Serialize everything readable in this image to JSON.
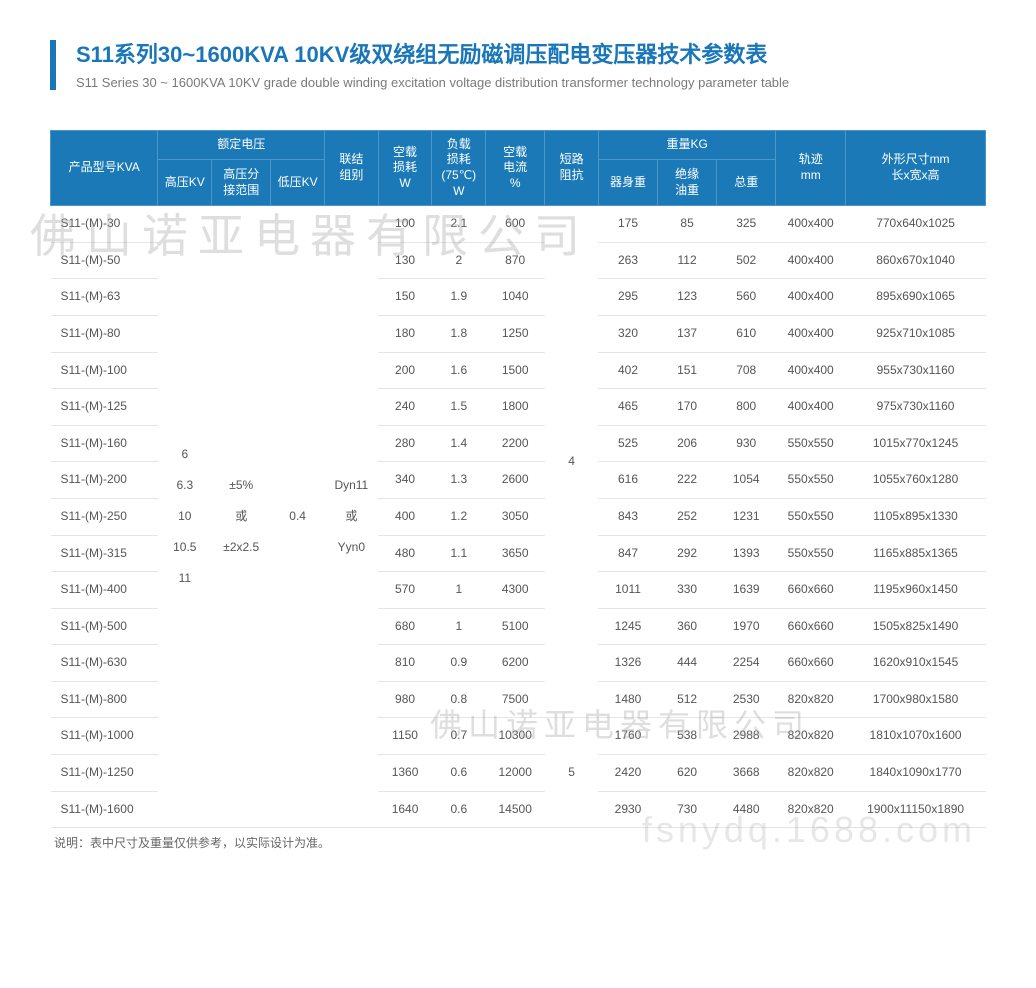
{
  "title_cn": "S11系列30~1600KVA 10KV级双绕组无励磁调压配电变压器技术参数表",
  "title_en": "S11 Series 30 ~ 1600KVA 10KV grade double winding excitation voltage distribution transformer technology parameter table",
  "colors": {
    "header_bg": "#1b79b8",
    "header_border": "#4a98c9",
    "accent": "#1976b8",
    "row_border": "#e5e5e5",
    "text": "#555555",
    "subtitle": "#7a7a7a"
  },
  "watermarks": {
    "w1": "佛山诺亚电器有限公司",
    "w2": "佛山诺亚电器有限公司",
    "w3": "fsnydq.1688.com"
  },
  "header": {
    "model": "产品型号KVA",
    "rated_voltage": "额定电压",
    "hv": "高压KV",
    "hv_range": "高压分\n接范围",
    "lv": "低压KV",
    "connection": "联结\n组别",
    "noload_loss": "空载\n损耗\nW",
    "load_loss": "负载\n损耗\n(75℃)\nW",
    "noload_current": "空载\n电流\n%",
    "impedance": "短路\n阻抗",
    "weight": "重量KG",
    "body_weight": "器身重",
    "oil_weight": "绝缘\n油重",
    "total_weight": "总重",
    "track": "轨迹\nmm",
    "dimension": "外形尺寸mm\n长x宽x高"
  },
  "shared": {
    "hv": "6\n\n6.3\n\n10\n\n10.5\n\n11",
    "hv_range": "±5%\n\n或\n\n±2x2.5",
    "lv": "0.4",
    "connection": "Dyn11\n\n或\n\nYyn0",
    "impedance1": "4",
    "impedance2": "5"
  },
  "rows": [
    {
      "model": "S11-(M)-30",
      "noload_loss": "100",
      "load_loss": "2.1",
      "noload_current": "600",
      "body": "175",
      "oil": "85",
      "total": "325",
      "track": "400x400",
      "dim": "770x640x1025"
    },
    {
      "model": "S11-(M)-50",
      "noload_loss": "130",
      "load_loss": "2",
      "noload_current": "870",
      "body": "263",
      "oil": "112",
      "total": "502",
      "track": "400x400",
      "dim": "860x670x1040"
    },
    {
      "model": "S11-(M)-63",
      "noload_loss": "150",
      "load_loss": "1.9",
      "noload_current": "1040",
      "body": "295",
      "oil": "123",
      "total": "560",
      "track": "400x400",
      "dim": "895x690x1065"
    },
    {
      "model": "S11-(M)-80",
      "noload_loss": "180",
      "load_loss": "1.8",
      "noload_current": "1250",
      "body": "320",
      "oil": "137",
      "total": "610",
      "track": "400x400",
      "dim": "925x710x1085"
    },
    {
      "model": "S11-(M)-100",
      "noload_loss": "200",
      "load_loss": "1.6",
      "noload_current": "1500",
      "body": "402",
      "oil": "151",
      "total": "708",
      "track": "400x400",
      "dim": "955x730x1160"
    },
    {
      "model": "S11-(M)-125",
      "noload_loss": "240",
      "load_loss": "1.5",
      "noload_current": "1800",
      "body": "465",
      "oil": "170",
      "total": "800",
      "track": "400x400",
      "dim": "975x730x1160"
    },
    {
      "model": "S11-(M)-160",
      "noload_loss": "280",
      "load_loss": "1.4",
      "noload_current": "2200",
      "body": "525",
      "oil": "206",
      "total": "930",
      "track": "550x550",
      "dim": "1015x770x1245"
    },
    {
      "model": "S11-(M)-200",
      "noload_loss": "340",
      "load_loss": "1.3",
      "noload_current": "2600",
      "body": "616",
      "oil": "222",
      "total": "1054",
      "track": "550x550",
      "dim": "1055x760x1280"
    },
    {
      "model": "S11-(M)-250",
      "noload_loss": "400",
      "load_loss": "1.2",
      "noload_current": "3050",
      "body": "843",
      "oil": "252",
      "total": "1231",
      "track": "550x550",
      "dim": "1105x895x1330"
    },
    {
      "model": "S11-(M)-315",
      "noload_loss": "480",
      "load_loss": "1.1",
      "noload_current": "3650",
      "body": "847",
      "oil": "292",
      "total": "1393",
      "track": "550x550",
      "dim": "1165x885x1365"
    },
    {
      "model": "S11-(M)-400",
      "noload_loss": "570",
      "load_loss": "1",
      "noload_current": "4300",
      "body": "1011",
      "oil": "330",
      "total": "1639",
      "track": "660x660",
      "dim": "1195x960x1450"
    },
    {
      "model": "S11-(M)-500",
      "noload_loss": "680",
      "load_loss": "1",
      "noload_current": "5100",
      "body": "1245",
      "oil": "360",
      "total": "1970",
      "track": "660x660",
      "dim": "1505x825x1490"
    },
    {
      "model": "S11-(M)-630",
      "noload_loss": "810",
      "load_loss": "0.9",
      "noload_current": "6200",
      "body": "1326",
      "oil": "444",
      "total": "2254",
      "track": "660x660",
      "dim": "1620x910x1545"
    },
    {
      "model": "S11-(M)-800",
      "noload_loss": "980",
      "load_loss": "0.8",
      "noload_current": "7500",
      "body": "1480",
      "oil": "512",
      "total": "2530",
      "track": "820x820",
      "dim": "1700x980x1580"
    },
    {
      "model": "S11-(M)-1000",
      "noload_loss": "1150",
      "load_loss": "0.7",
      "noload_current": "10300",
      "body": "1760",
      "oil": "538",
      "total": "2988",
      "track": "820x820",
      "dim": "1810x1070x1600"
    },
    {
      "model": "S11-(M)-1250",
      "noload_loss": "1360",
      "load_loss": "0.6",
      "noload_current": "12000",
      "body": "2420",
      "oil": "620",
      "total": "3668",
      "track": "820x820",
      "dim": "1840x1090x1770"
    },
    {
      "model": "S11-(M)-1600",
      "noload_loss": "1640",
      "load_loss": "0.6",
      "noload_current": "14500",
      "body": "2930",
      "oil": "730",
      "total": "4480",
      "track": "820x820",
      "dim": "1900x11150x1890"
    }
  ],
  "note": "说明：表中尺寸及重量仅供参考，以实际设计为准。"
}
